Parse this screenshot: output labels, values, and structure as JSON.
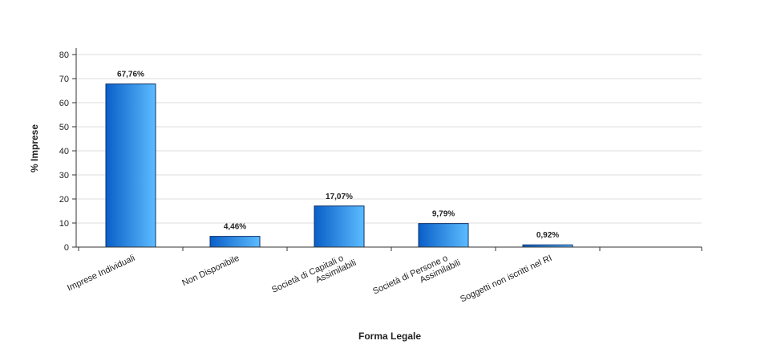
{
  "chart_data": {
    "type": "bar",
    "title": "",
    "xlabel": "Forma Legale",
    "ylabel": "% Imprese",
    "ylim": [
      0,
      80
    ],
    "yticks": [
      0,
      10,
      20,
      30,
      40,
      50,
      60,
      70,
      80
    ],
    "grid": true,
    "legend": "none",
    "categories": [
      [
        "Imprese Individuali"
      ],
      [
        "Non Disponibile"
      ],
      [
        "Società di Capitali o",
        "Assimilabili"
      ],
      [
        "Società di Persone o",
        "Assimilabili"
      ],
      [
        "Soggetti non iscritti nel RI"
      ]
    ],
    "values": [
      67.76,
      4.46,
      17.07,
      9.79,
      0.92
    ],
    "data_labels": [
      "67,76%",
      "4,46%",
      "17,07%",
      "9,79%",
      "0,92%"
    ],
    "colors": {
      "bar_dark": "#0a5fc8",
      "bar_light": "#5cbcff",
      "bar_stroke": "#0b2f6a",
      "grid": "#dddddd",
      "axis": "#333333"
    }
  }
}
